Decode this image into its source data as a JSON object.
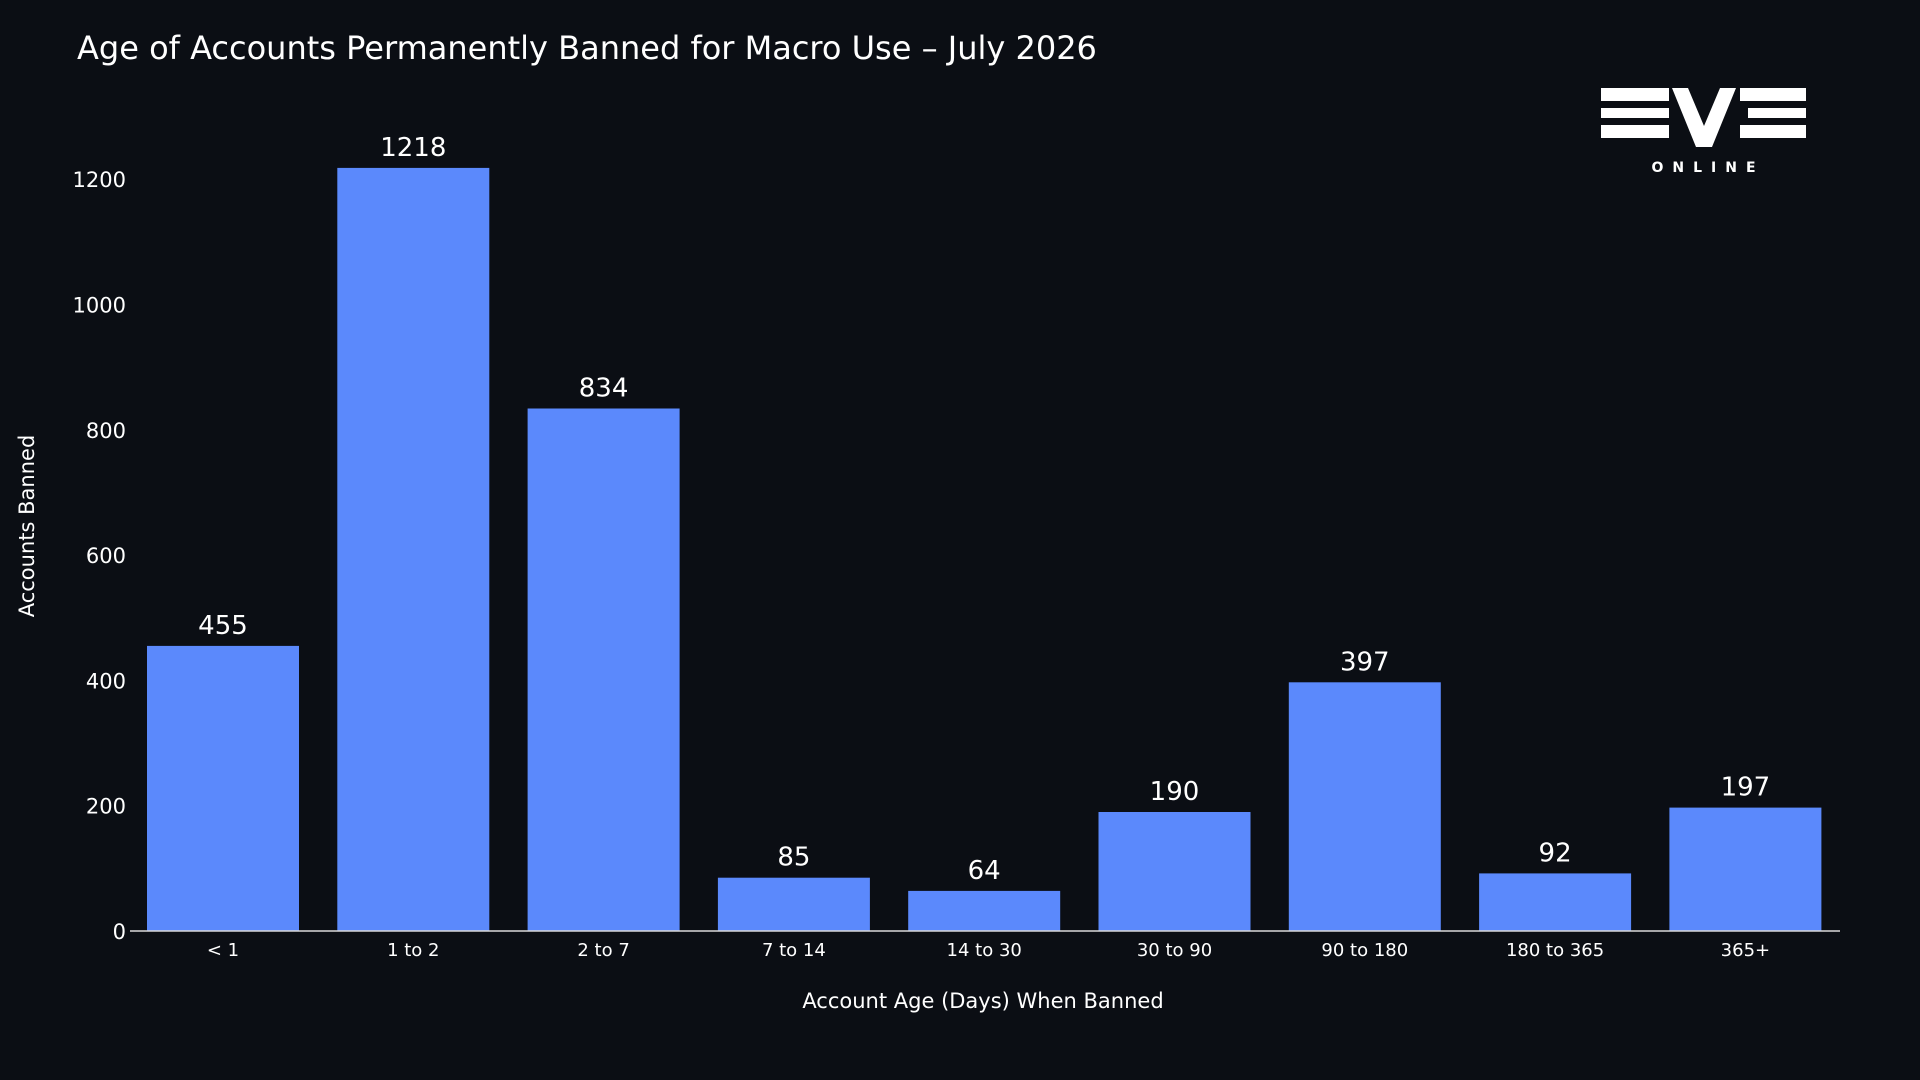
{
  "chart_data": {
    "type": "bar",
    "title": "Age of Accounts Permanently Banned for Macro Use – July 2026",
    "xlabel": "Account Age (Days) When Banned",
    "ylabel": "Accounts Banned",
    "categories": [
      "< 1",
      "1 to 2",
      "2 to 7",
      "7 to 14",
      "14 to 30",
      "30 to 90",
      "90 to 180",
      "180 to 365",
      "365+"
    ],
    "values": [
      455,
      1218,
      834,
      85,
      64,
      190,
      397,
      92,
      197
    ],
    "ylim": [
      0,
      1250
    ],
    "yticks": [
      0,
      200,
      400,
      600,
      800,
      1000,
      1200
    ],
    "grid": false,
    "legend": "none",
    "bar_color": "#5b89fc",
    "background": "#0b0e14",
    "text_color": "#ffffff"
  },
  "logo": {
    "mark_text": "EVE",
    "subtitle": "ONLINE"
  }
}
